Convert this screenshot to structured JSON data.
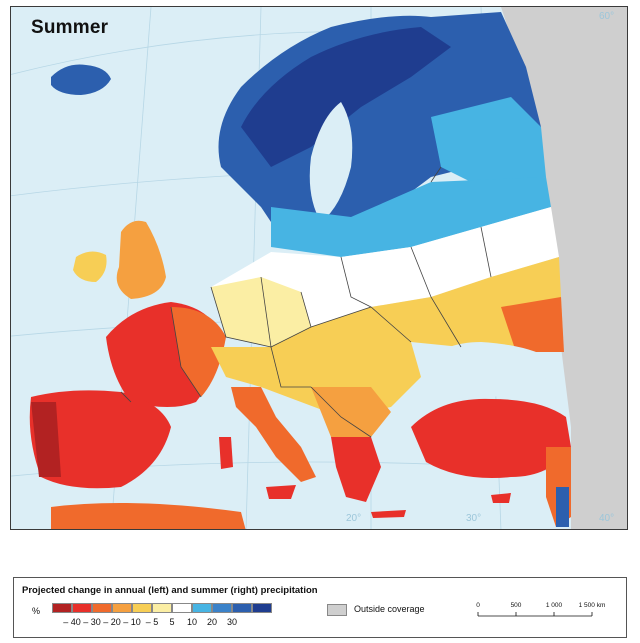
{
  "map": {
    "title": "Summer",
    "graticule_labels": {
      "lat_60": "60°",
      "lon_20": "20°",
      "lon_30": "30°",
      "lat_40": "40°"
    }
  },
  "legend": {
    "title": "Projected change in annual (left) and summer (right) precipitation",
    "unit": "%",
    "classes": [
      {
        "color": "#b22222"
      },
      {
        "color": "#e8302a"
      },
      {
        "color": "#f06a2c"
      },
      {
        "color": "#f5a040"
      },
      {
        "color": "#f7ce55"
      },
      {
        "color": "#fbeea4"
      },
      {
        "color": "#ffffff"
      },
      {
        "color": "#47b4e3"
      },
      {
        "color": "#3b82c9"
      },
      {
        "color": "#2c5fae"
      },
      {
        "color": "#1f3d8f"
      }
    ],
    "ticks": [
      "– 40",
      "– 30",
      "– 20",
      "– 10",
      "– 5",
      "5",
      "10",
      "20",
      "30"
    ],
    "outside_label": "Outside coverage",
    "outside_color": "#cfcfcf",
    "scale_ticks": [
      "0",
      "500",
      "1 000",
      "1 500 km"
    ]
  },
  "colors": {
    "sea": "#dbeef6",
    "outside": "#cfcfcf",
    "border": "#444444"
  }
}
